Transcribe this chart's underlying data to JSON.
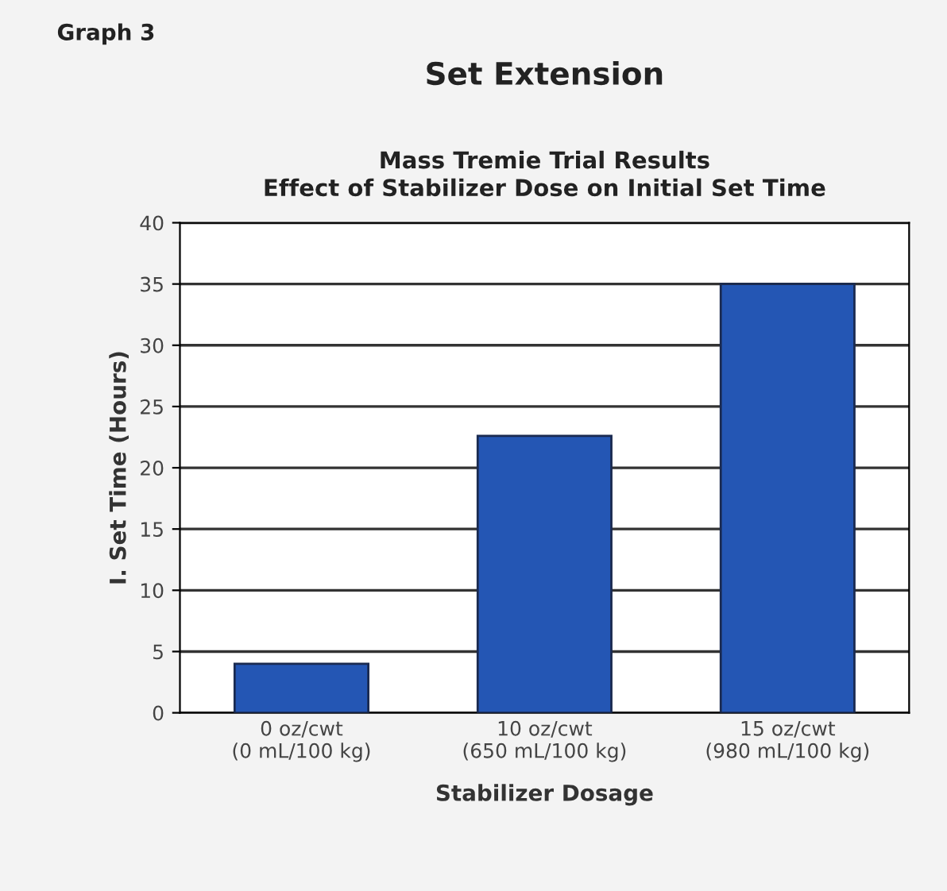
{
  "chart_data": {
    "type": "bar",
    "title": "Set Extension",
    "subtitle": "Mass Tremie Trial Results\nEffect of Stabilizer Dose on Initial Set Time",
    "annotations": [
      "Graph 3"
    ],
    "categories": [
      "0 oz/cwt\n(0 mL/100 kg)",
      "10 oz/cwt\n(650 mL/100 kg)",
      "15 oz/cwt\n(980 mL/100 kg)"
    ],
    "values": [
      4.0,
      22.6,
      35
    ],
    "color": "#2456b4",
    "xlabel": "Stabilizer Dosage",
    "ylabel": "I. Set Time (Hours)",
    "ylim": [
      0,
      40
    ],
    "yticks": [
      0,
      5,
      10,
      15,
      20,
      25,
      30,
      35,
      40
    ],
    "grid": "y"
  }
}
